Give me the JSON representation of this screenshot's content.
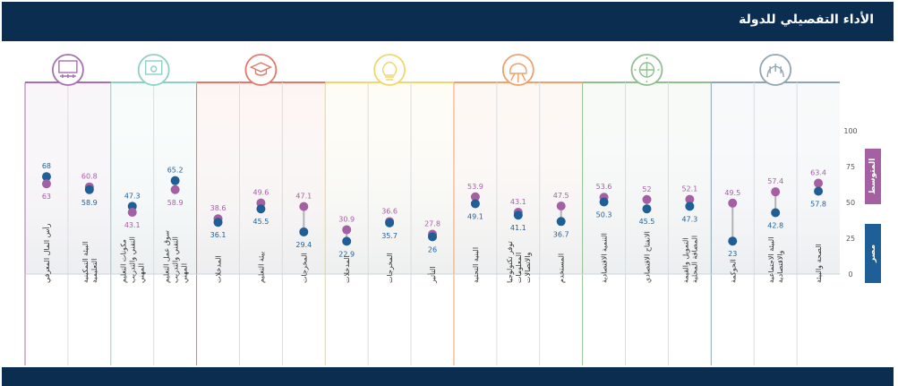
{
  "title": "الأداء التفصيلي للدولة",
  "legend": {
    "global_average": "المتوسط العالمي",
    "country": "مصر"
  },
  "colors": {
    "header": "#0b2d4f",
    "global_average": "#a560a4",
    "country": "#1f5f97",
    "connector": "#b3b3b3",
    "pillar_health": "#8fa5b2",
    "pillar_env": "#8fbf8f",
    "pillar_rd": "#f0a06a",
    "pillar_innovation": "#f1d66b",
    "pillar_higher_ed": "#e2786a",
    "pillar_tvet": "#8fd0c2",
    "pillar_pre_university": "#a66fb0"
  },
  "chart_data": {
    "type": "dot",
    "title": "الأداء التفصيلي للدولة",
    "ylim": [
      0,
      100
    ],
    "yticks": [
      0,
      25,
      50,
      75,
      100
    ],
    "grid": false,
    "legend_position": "right",
    "pillars": [
      {
        "icon": "health-hands-icon",
        "color": "#8fa5b2",
        "categories": [
          "الصحة والبيئة",
          "البيئة الاجتماعية والاقتصادية",
          "الحوكمة"
        ]
      },
      {
        "icon": "globe-arrows-icon",
        "color": "#8fbf8f",
        "categories": [
          "التمويل والقيمة المضافة المحلية",
          "الانفتاح الاقتصادي",
          "التنمية الاقتصادية"
        ]
      },
      {
        "icon": "tech-tree-icon",
        "color": "#f0a06a",
        "categories": [
          "المستخدم",
          "توفر تكنولوجيا المعلومات والاتصالات",
          "البنية التحتية"
        ]
      },
      {
        "icon": "lightbulb-icon",
        "color": "#f1d66b",
        "categories": [
          "التأثير",
          "المخرجات",
          "المدخلات"
        ]
      },
      {
        "icon": "graduation-cap-icon",
        "color": "#e2786a",
        "categories": [
          "المخرجات",
          "بيئة التعليم",
          "المدخلات"
        ]
      },
      {
        "icon": "certificate-icon",
        "color": "#8fd0c2",
        "categories": [
          "سوق عمل التعليم التقني والتدريب المهني",
          "مكونات التعليم التقني والتدريب المهني"
        ]
      },
      {
        "icon": "classroom-icon",
        "color": "#a66fb0",
        "categories": [
          "البيئة التمكينية التعليمية",
          "رأس المال المعرفي"
        ]
      }
    ],
    "categories": [
      "الصحة والبيئة",
      "البيئة الاجتماعية والاقتصادية",
      "الحوكمة",
      "التمويل والقيمة المضافة المحلية",
      "الانفتاح الاقتصادي",
      "التنمية الاقتصادية",
      "المستخدم",
      "توفر تكنولوجيا المعلومات والاتصالات",
      "البنية التحتية",
      "التأثير",
      "المخرجات",
      "المدخلات",
      "المخرجات",
      "بيئة التعليم",
      "المدخلات",
      "سوق عمل التعليم التقني والتدريب المهني",
      "مكونات التعليم التقني والتدريب المهني",
      "البيئة التمكينية التعليمية",
      "رأس المال المعرفي"
    ],
    "series": [
      {
        "name": "المتوسط العالمي",
        "color": "#a560a4",
        "values": [
          63.4,
          57.4,
          49.5,
          52.1,
          52,
          53.6,
          47.5,
          43.1,
          53.9,
          27.8,
          36.6,
          30.9,
          47.1,
          49.6,
          38.6,
          58.9,
          43.1,
          60.8,
          63
        ]
      },
      {
        "name": "مصر",
        "color": "#1f5f97",
        "values": [
          57.8,
          42.8,
          23,
          47.3,
          45.5,
          50.3,
          36.7,
          41.1,
          49.1,
          26,
          35.7,
          22.9,
          29.4,
          45.5,
          36.1,
          65.2,
          47.3,
          58.9,
          68
        ]
      }
    ]
  }
}
